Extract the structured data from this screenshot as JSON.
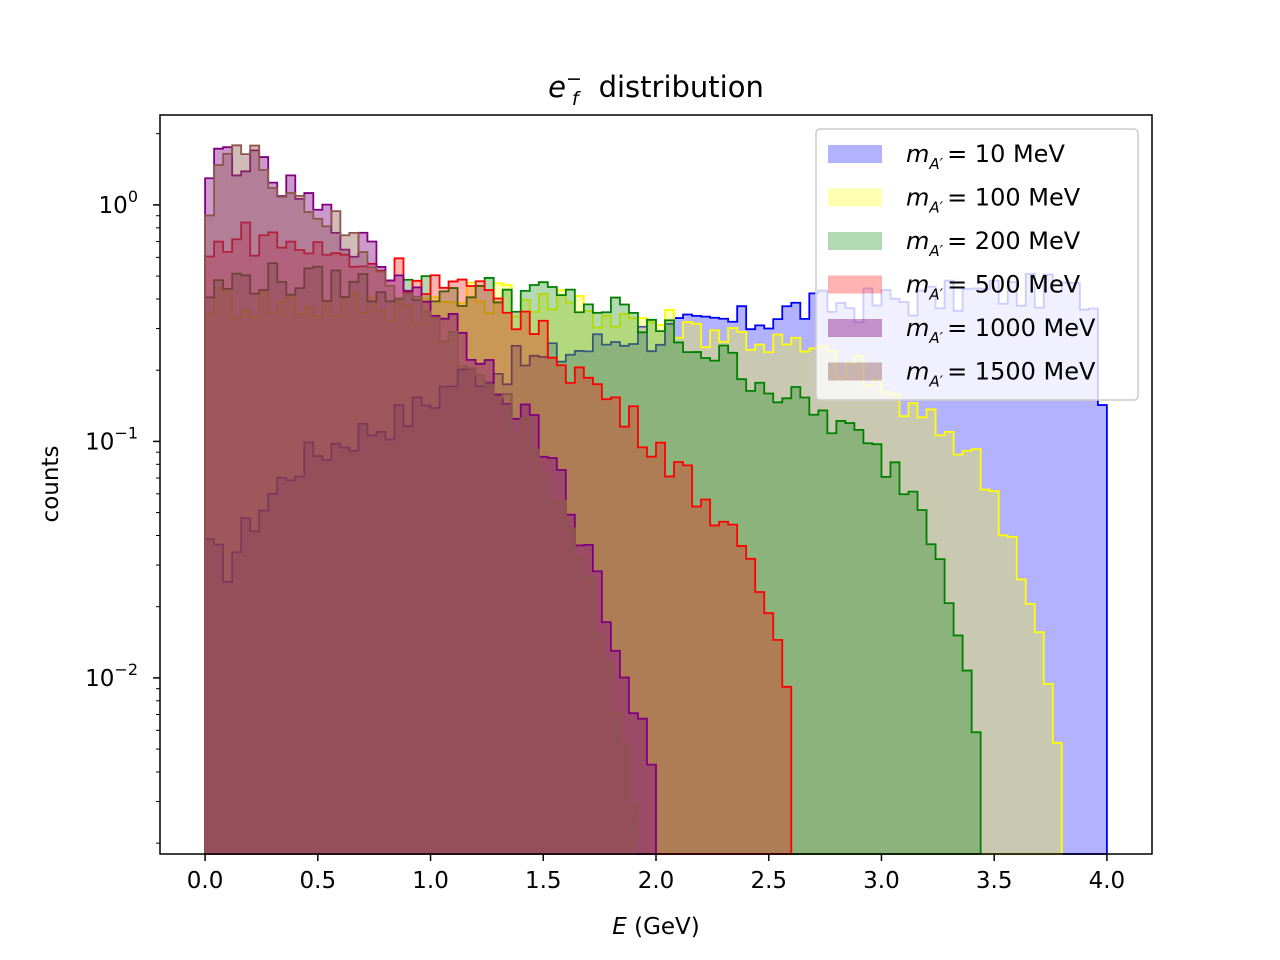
{
  "chart_data": {
    "type": "histogram",
    "title": "e_f^- distribution",
    "title_parts": {
      "base": "e",
      "sup": "−",
      "sub": "f",
      "rest": "distribution"
    },
    "xlabel": "E",
    "xlabel_unit": "(GeV)",
    "ylabel": "counts",
    "xlim": [
      -0.2,
      4.2
    ],
    "ylim": [
      0.0018,
      2.4
    ],
    "yscale": "log",
    "grid": false,
    "legend_position": "top-right",
    "x_ticks": [
      {
        "value": 0.0,
        "label": "0.0"
      },
      {
        "value": 0.5,
        "label": "0.5"
      },
      {
        "value": 1.0,
        "label": "1.0"
      },
      {
        "value": 1.5,
        "label": "1.5"
      },
      {
        "value": 2.0,
        "label": "2.0"
      },
      {
        "value": 2.5,
        "label": "2.5"
      },
      {
        "value": 3.0,
        "label": "3.0"
      },
      {
        "value": 3.5,
        "label": "3.5"
      },
      {
        "value": 4.0,
        "label": "4.0"
      }
    ],
    "y_ticks": [
      {
        "value": 1,
        "base": "10",
        "exp": "0"
      },
      {
        "value": 0.1,
        "base": "10",
        "exp": "−1"
      },
      {
        "value": 0.01,
        "base": "10",
        "exp": "−2"
      }
    ],
    "series": [
      {
        "name": "m_{A'} = 10 MeV",
        "legend_label": {
          "m": "m",
          "sub": "A′",
          "eq": "= 10 MeV"
        },
        "fill_color": "#0000ff",
        "edge_color": "#0000ff",
        "fill_alpha": 0.3,
        "x_range": [
          0,
          4
        ],
        "points": [
          [
            0,
            0.035
          ],
          [
            0.1,
            0.03
          ],
          [
            0.2,
            0.045
          ],
          [
            0.3,
            0.06
          ],
          [
            0.4,
            0.08
          ],
          [
            0.5,
            0.09
          ],
          [
            0.6,
            0.1
          ],
          [
            0.7,
            0.11
          ],
          [
            0.8,
            0.12
          ],
          [
            0.9,
            0.13
          ],
          [
            1.0,
            0.15
          ],
          [
            1.1,
            0.18
          ],
          [
            1.2,
            0.2
          ],
          [
            1.3,
            0.2
          ],
          [
            1.4,
            0.22
          ],
          [
            1.5,
            0.22
          ],
          [
            1.6,
            0.24
          ],
          [
            1.7,
            0.25
          ],
          [
            1.8,
            0.27
          ],
          [
            1.9,
            0.29
          ],
          [
            2.0,
            0.28
          ],
          [
            2.1,
            0.3
          ],
          [
            2.2,
            0.3
          ],
          [
            2.3,
            0.32
          ],
          [
            2.4,
            0.32
          ],
          [
            2.5,
            0.34
          ],
          [
            2.6,
            0.36
          ],
          [
            2.7,
            0.37
          ],
          [
            2.8,
            0.38
          ],
          [
            2.9,
            0.38
          ],
          [
            3.0,
            0.39
          ],
          [
            3.1,
            0.4
          ],
          [
            3.2,
            0.4
          ],
          [
            3.3,
            0.41
          ],
          [
            3.4,
            0.42
          ],
          [
            3.5,
            0.43
          ],
          [
            3.6,
            0.43
          ],
          [
            3.7,
            0.44
          ],
          [
            3.8,
            0.43
          ],
          [
            3.9,
            0.42
          ],
          [
            3.96,
            0.35
          ],
          [
            4.0,
            0.085
          ]
        ]
      },
      {
        "name": "m_{A'} = 100 MeV",
        "legend_label": {
          "m": "m",
          "sub": "A′",
          "eq": "= 100 MeV"
        },
        "fill_color": "#ffff00",
        "edge_color": "#ffff00",
        "fill_alpha": 0.3,
        "x_range": [
          0,
          3.8
        ],
        "points": [
          [
            0,
            0.035
          ],
          [
            0.02,
            0.4
          ],
          [
            0.5,
            0.38
          ],
          [
            1.0,
            0.38
          ],
          [
            1.3,
            0.42
          ],
          [
            1.5,
            0.39
          ],
          [
            1.8,
            0.35
          ],
          [
            2.0,
            0.33
          ],
          [
            2.1,
            0.32
          ],
          [
            2.2,
            0.3
          ],
          [
            2.4,
            0.28
          ],
          [
            2.6,
            0.25
          ],
          [
            2.8,
            0.22
          ],
          [
            2.9,
            0.2
          ],
          [
            3.0,
            0.17
          ],
          [
            3.1,
            0.14
          ],
          [
            3.2,
            0.12
          ],
          [
            3.3,
            0.11
          ],
          [
            3.4,
            0.09
          ],
          [
            3.5,
            0.06
          ],
          [
            3.6,
            0.035
          ],
          [
            3.7,
            0.015
          ],
          [
            3.75,
            0.008
          ],
          [
            3.8,
            0.004
          ]
        ]
      },
      {
        "name": "m_{A'} = 200 MeV",
        "legend_label": {
          "m": "m",
          "sub": "A′",
          "eq": "= 200 MeV"
        },
        "fill_color": "#008000",
        "edge_color": "#008000",
        "fill_alpha": 0.3,
        "x_range": [
          0,
          3.44
        ],
        "points": [
          [
            0,
            0.42
          ],
          [
            0.2,
            0.5
          ],
          [
            0.5,
            0.47
          ],
          [
            1.0,
            0.44
          ],
          [
            1.5,
            0.42
          ],
          [
            1.8,
            0.36
          ],
          [
            2.0,
            0.3
          ],
          [
            2.2,
            0.25
          ],
          [
            2.4,
            0.2
          ],
          [
            2.6,
            0.15
          ],
          [
            2.8,
            0.12
          ],
          [
            3.0,
            0.085
          ],
          [
            3.1,
            0.07
          ],
          [
            3.2,
            0.05
          ],
          [
            3.3,
            0.025
          ],
          [
            3.4,
            0.01
          ],
          [
            3.44,
            0.005
          ]
        ]
      },
      {
        "name": "m_{A'} = 500 MeV",
        "legend_label": {
          "m": "m",
          "sub": "A′",
          "eq": "= 500 MeV"
        },
        "fill_color": "#ff0000",
        "edge_color": "#ff0000",
        "fill_alpha": 0.3,
        "x_range": [
          0,
          2.6
        ],
        "points": [
          [
            0,
            0.55
          ],
          [
            0.1,
            0.75
          ],
          [
            0.3,
            0.72
          ],
          [
            0.6,
            0.6
          ],
          [
            0.8,
            0.55
          ],
          [
            1.0,
            0.48
          ],
          [
            1.2,
            0.42
          ],
          [
            1.4,
            0.35
          ],
          [
            1.6,
            0.22
          ],
          [
            1.8,
            0.15
          ],
          [
            2.0,
            0.1
          ],
          [
            2.2,
            0.06
          ],
          [
            2.3,
            0.045
          ],
          [
            2.4,
            0.03
          ],
          [
            2.5,
            0.02
          ],
          [
            2.6,
            0.008
          ]
        ]
      },
      {
        "name": "m_{A'} = 1000 MeV",
        "legend_label": {
          "m": "m",
          "sub": "A′",
          "eq": "= 1000 MeV"
        },
        "fill_color": "#800080",
        "edge_color": "#800080",
        "fill_alpha": 0.4,
        "x_range": [
          0,
          2.0
        ],
        "points": [
          [
            0,
            0.9
          ],
          [
            0.05,
            1.7
          ],
          [
            0.2,
            1.5
          ],
          [
            0.4,
            1.1
          ],
          [
            0.6,
            0.8
          ],
          [
            0.8,
            0.55
          ],
          [
            1.0,
            0.4
          ],
          [
            1.2,
            0.25
          ],
          [
            1.4,
            0.14
          ],
          [
            1.5,
            0.1
          ],
          [
            1.6,
            0.06
          ],
          [
            1.7,
            0.035
          ],
          [
            1.8,
            0.015
          ],
          [
            1.9,
            0.008
          ],
          [
            2.0,
            0.004
          ]
        ]
      },
      {
        "name": "m_{A'} = 1500 MeV",
        "legend_label": {
          "m": "m",
          "sub": "A′",
          "eq": "= 1500 MeV"
        },
        "fill_color": "#8c564b",
        "edge_color": "#8c564b",
        "fill_alpha": 0.4,
        "x_range": [
          0,
          1.9
        ],
        "points": [
          [
            0,
            0.9
          ],
          [
            0.08,
            1.75
          ],
          [
            0.25,
            1.5
          ],
          [
            0.4,
            1.1
          ],
          [
            0.6,
            0.78
          ],
          [
            0.8,
            0.52
          ],
          [
            1.0,
            0.33
          ],
          [
            1.2,
            0.2
          ],
          [
            1.4,
            0.12
          ],
          [
            1.5,
            0.08
          ],
          [
            1.6,
            0.05
          ],
          [
            1.7,
            0.025
          ],
          [
            1.8,
            0.01
          ],
          [
            1.9,
            0.003
          ]
        ]
      }
    ]
  }
}
